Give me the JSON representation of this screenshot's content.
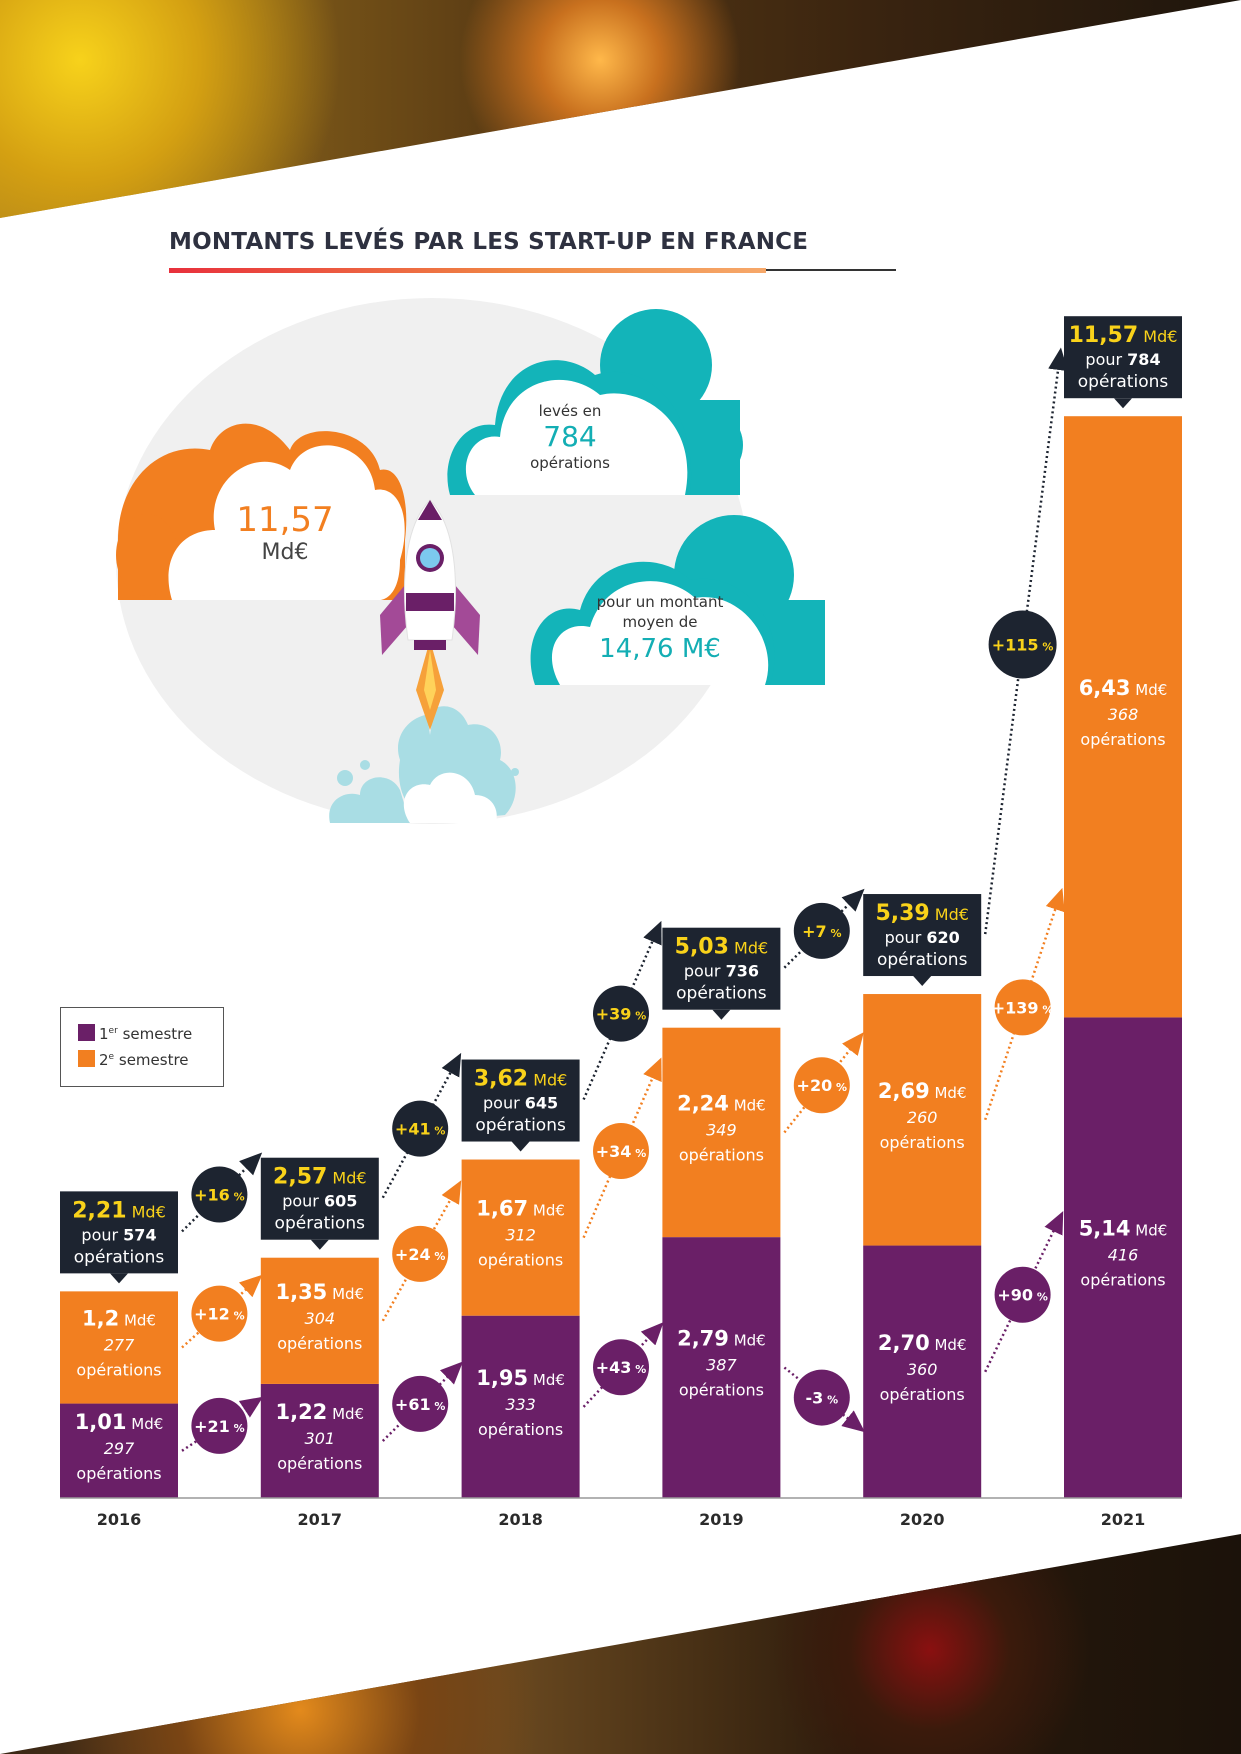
{
  "title": "MONTANTS LEVÉS PAR LES START-UP EN FRANCE",
  "hero": {
    "total_value": "11,57",
    "total_unit": "Md€",
    "ops_prefix": "levés en",
    "ops_value": "784",
    "ops_suffix": "opérations",
    "avg_line1": "pour un montant",
    "avg_line2": "moyen de",
    "avg_value": "14,76 M€"
  },
  "legend": {
    "s1_sup": "er",
    "s1_label": "semestre",
    "s1_num": "1",
    "s2_sup": "e",
    "s2_label": "semestre",
    "s2_num": "2"
  },
  "colors": {
    "s1": "#6a1f67",
    "s2": "#f27f20",
    "dark": "#1d2430",
    "yellow": "#f9d21a"
  },
  "chart_data": {
    "type": "bar",
    "stacked": true,
    "unit": "Md€",
    "categories": [
      "2016",
      "2017",
      "2018",
      "2019",
      "2020",
      "2021"
    ],
    "series": [
      {
        "name": "1er semestre",
        "values": [
          1.01,
          1.22,
          1.95,
          2.79,
          2.7,
          5.14
        ],
        "labels": [
          "1,01",
          "1,22",
          "1,95",
          "2,79",
          "2,70",
          "5,14"
        ],
        "ops": [
          "297",
          "301",
          "333",
          "387",
          "360",
          "416"
        ]
      },
      {
        "name": "2e semestre",
        "values": [
          1.2,
          1.35,
          1.67,
          2.24,
          2.69,
          6.43
        ],
        "labels": [
          "1,2",
          "1,35",
          "1,67",
          "2,24",
          "2,69",
          "6,43"
        ],
        "ops": [
          "277",
          "304",
          "312",
          "349",
          "260",
          "368"
        ]
      }
    ],
    "totals": {
      "values": [
        2.21,
        2.57,
        3.62,
        5.03,
        5.39,
        11.57
      ],
      "labels": [
        "2,21",
        "2,57",
        "3,62",
        "5,03",
        "5,39",
        "11,57"
      ],
      "ops": [
        "574",
        "605",
        "645",
        "736",
        "620",
        "784"
      ]
    },
    "growth": {
      "total": [
        "+16 %",
        "+41 %",
        "+39 %",
        "+7 %",
        "+115 %"
      ],
      "s2": [
        "+12 %",
        "+24 %",
        "+34 %",
        "+20 %",
        "+139 %"
      ],
      "s1": [
        "+21 %",
        "+61 %",
        "+43 %",
        "-3 %",
        "+90 %"
      ]
    },
    "value_unit": "Md€",
    "ops_word": "opérations",
    "pour_word": "pour"
  }
}
